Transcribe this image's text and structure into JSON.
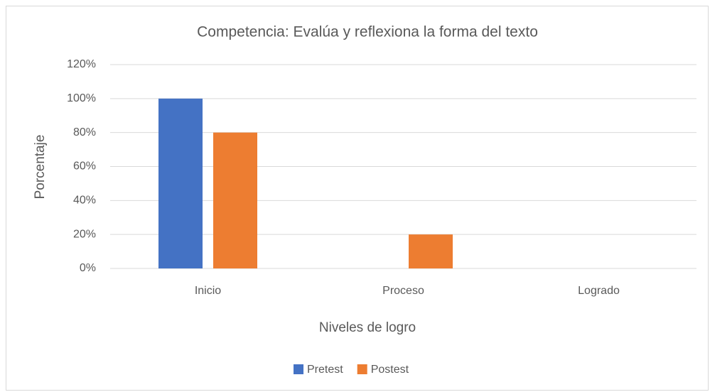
{
  "chart_data": {
    "type": "bar",
    "title": "Competencia: Evalúa y reflexiona la forma del texto",
    "x_label": "Niveles de logro",
    "y_label": "Porcentaje",
    "categories": [
      "Inicio",
      "Proceso",
      "Logrado"
    ],
    "series": [
      {
        "name": "Pretest",
        "color": "#4472c4",
        "values": [
          100,
          0,
          0
        ]
      },
      {
        "name": "Postest",
        "color": "#ed7d31",
        "values": [
          80,
          20,
          0
        ]
      }
    ],
    "ylim": [
      0,
      120
    ],
    "yticks": [
      {
        "value": 0,
        "label": "0%"
      },
      {
        "value": 20,
        "label": "20%"
      },
      {
        "value": 40,
        "label": "40%"
      },
      {
        "value": 60,
        "label": "60%"
      },
      {
        "value": 80,
        "label": "80%"
      },
      {
        "value": 100,
        "label": "100%"
      },
      {
        "value": 120,
        "label": "120%"
      }
    ],
    "grid": true,
    "legend": "bottom"
  }
}
